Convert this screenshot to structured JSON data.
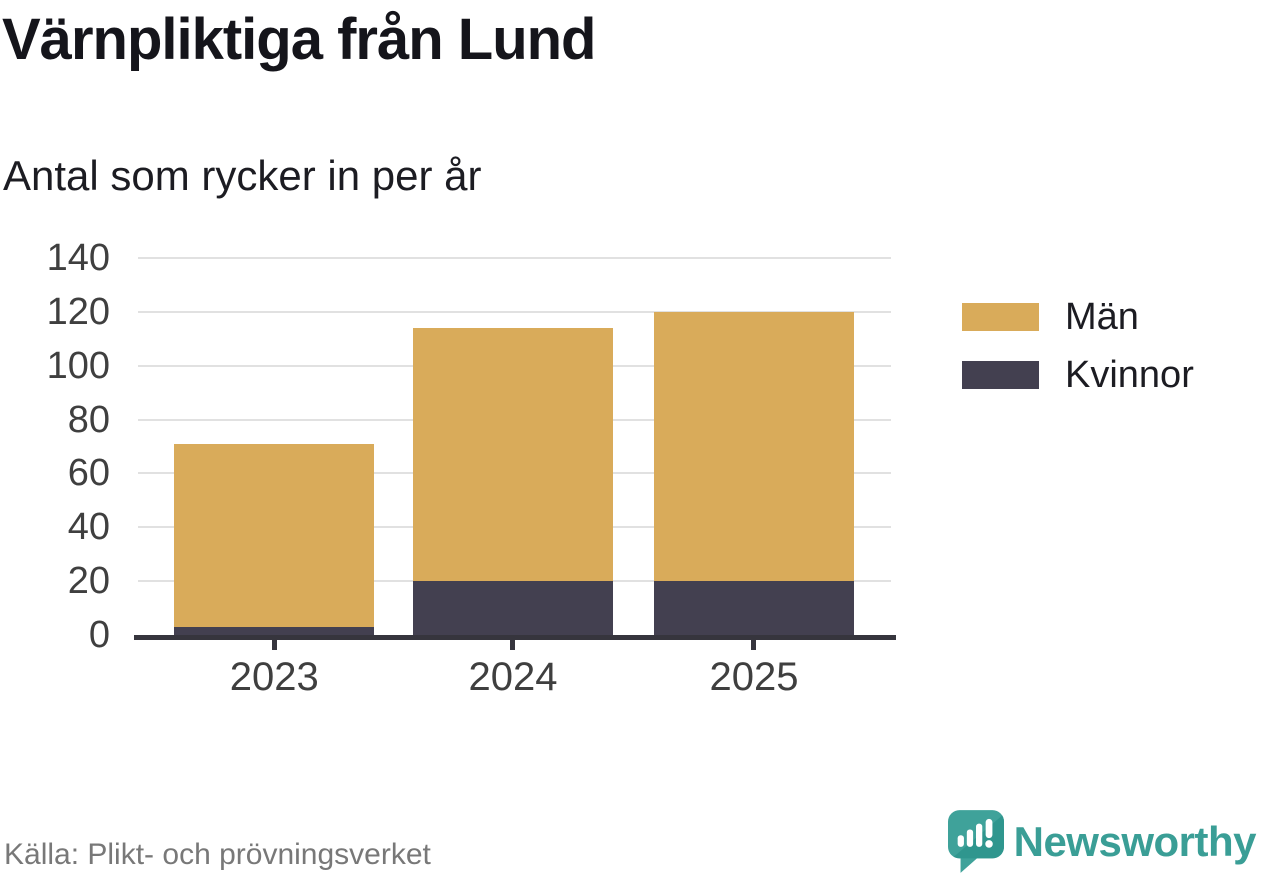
{
  "header": {
    "title": "Värnpliktiga från Lund",
    "subtitle": "Antal som rycker in per år"
  },
  "footer": {
    "source": "Källa: Plikt- och prövningsverket",
    "brand": "Newsworthy"
  },
  "colors": {
    "men": "#d9ab5a",
    "women": "#434050",
    "gridline": "#e1e1e1",
    "axis": "#36353d",
    "tick_text": "#3f3f3f",
    "source_text": "#787878",
    "brand_teal": "#3a9e96"
  },
  "chart_data": {
    "type": "bar",
    "stacked": true,
    "categories": [
      "2023",
      "2024",
      "2025"
    ],
    "series": [
      {
        "name": "Män",
        "color": "#d9ab5a",
        "values": [
          68,
          94,
          100
        ]
      },
      {
        "name": "Kvinnor",
        "color": "#434050",
        "values": [
          3,
          20,
          20
        ]
      }
    ],
    "totals": [
      71,
      114,
      120
    ],
    "stack_order_bottom_to_top": [
      "Kvinnor",
      "Män"
    ],
    "title": "Värnpliktiga från Lund",
    "subtitle": "Antal som rycker in per år",
    "xlabel": "",
    "ylabel": "",
    "ylim": [
      0,
      140
    ],
    "yticks": [
      0,
      20,
      40,
      60,
      80,
      100,
      120,
      140
    ],
    "grid": true,
    "legend_position": "right"
  }
}
